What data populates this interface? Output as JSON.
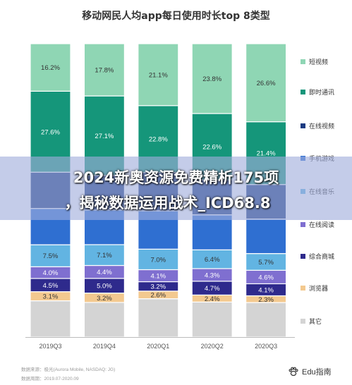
{
  "chart_data": {
    "type": "bar",
    "stacked": true,
    "percent_stacked": true,
    "title": "移动网民人均app每日使用时长top 8类型",
    "categories": [
      "2019Q3",
      "2019Q4",
      "2020Q1",
      "2020Q2",
      "2020Q3"
    ],
    "series": [
      {
        "name": "其它",
        "color": "#d4d4d4",
        "values": [
          null,
          null,
          null,
          null,
          null
        ]
      },
      {
        "name": "浏览器",
        "color": "#f3c98f",
        "values": [
          3.1,
          3.2,
          2.6,
          2.4,
          2.3
        ]
      },
      {
        "name": "综合商城",
        "color": "#2e2a8c",
        "values": [
          4.5,
          5.0,
          3.2,
          4.7,
          4.1
        ]
      },
      {
        "name": "在线阅读",
        "color": "#7f6fd0",
        "values": [
          4.0,
          4.4,
          4.1,
          4.3,
          4.6
        ]
      },
      {
        "name": "在线音乐",
        "color": "#62b4e2",
        "values": [
          7.5,
          7.1,
          7.0,
          6.4,
          5.7
        ]
      },
      {
        "name": "手机游戏",
        "color": "#2f6fd1",
        "values": [
          null,
          null,
          null,
          null,
          null
        ]
      },
      {
        "name": "在线视频",
        "color": "#1a3b82",
        "values": [
          null,
          null,
          null,
          null,
          null
        ]
      },
      {
        "name": "即时通讯",
        "color": "#15967a",
        "values": [
          27.6,
          27.1,
          22.8,
          22.6,
          21.4
        ]
      },
      {
        "name": "短视频",
        "color": "#8fd6b4",
        "values": [
          16.2,
          17.8,
          21.1,
          23.8,
          26.6
        ]
      }
    ],
    "legend_position": "right",
    "legend_order": [
      "短视频",
      "即时通讯",
      "在线视频",
      "手机游戏",
      "在线音乐",
      "在线阅读",
      "综合商城",
      "浏览器",
      "其它"
    ],
    "ylim": [
      0,
      100
    ]
  },
  "overlay": {
    "line1": "2024新奥资源免费精析175项",
    "line2": "，揭秘数据运用战术_ICD68.8"
  },
  "source": {
    "line1": "数据来源：极光(Aurora Mobile, NASDAQ: JG)",
    "line2": "数据周期：2019.07-2020.09"
  },
  "watermark": {
    "text": "Edu指南",
    "icon": "paw-icon"
  }
}
